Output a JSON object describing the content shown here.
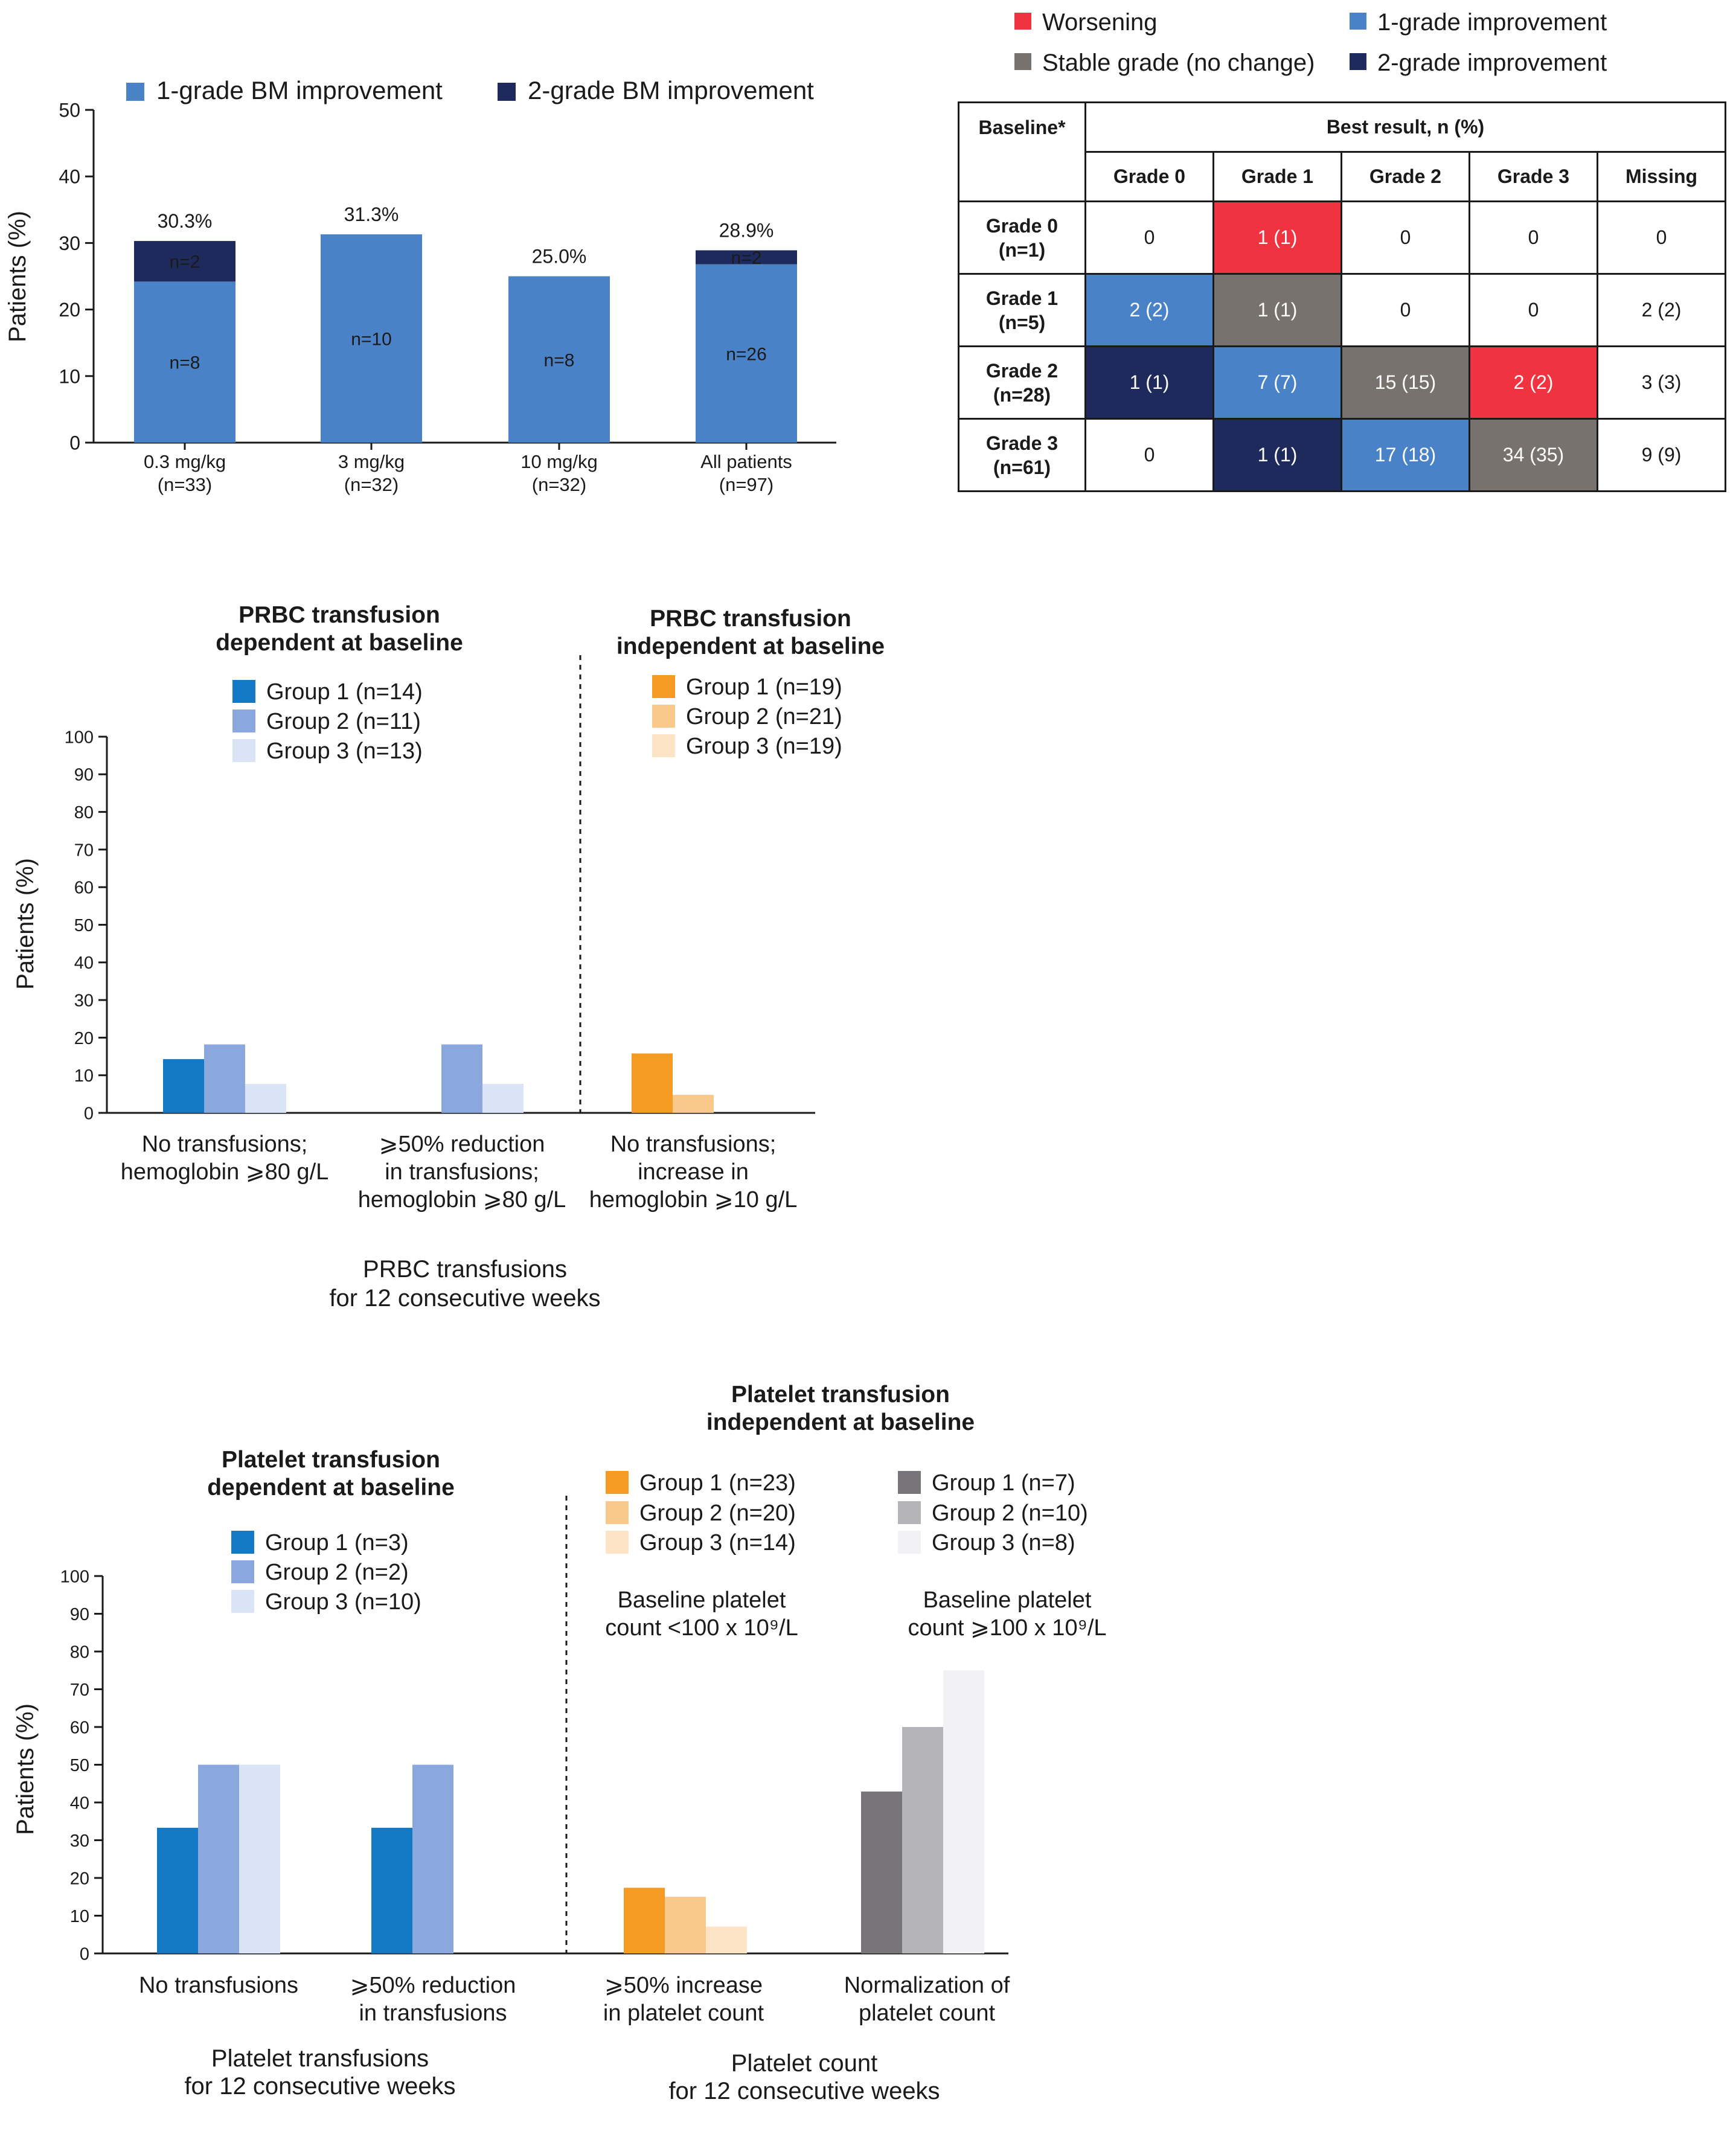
{
  "chart_data": [
    {
      "id": "bm-improvement",
      "type": "bar",
      "stacked": true,
      "ylabel": "Patients (%)",
      "ylim": [
        0,
        50
      ],
      "yticks": [
        0,
        10,
        20,
        30,
        40,
        50
      ],
      "categories": [
        "0.3 mg/kg\n(n=33)",
        "3 mg/kg\n(n=32)",
        "10 mg/kg\n(n=32)",
        "All patients\n(n=97)"
      ],
      "series": [
        {
          "name": "1-grade BM improvement",
          "color": "#4a82c8",
          "values": [
            24.2,
            31.3,
            25.0,
            26.8
          ],
          "labels": [
            "n=8",
            "n=10",
            "n=8",
            "n=26"
          ]
        },
        {
          "name": "2-grade BM improvement",
          "color": "#1f2a5c",
          "values": [
            6.1,
            0,
            0,
            2.1
          ],
          "labels": [
            "n=2",
            "",
            "",
            "n=2"
          ]
        }
      ],
      "totals": [
        "30.3%",
        "31.3%",
        "25.0%",
        "28.9%"
      ],
      "legend": "top"
    },
    {
      "id": "grade-shift-table",
      "type": "table",
      "legend": [
        {
          "name": "Worsening",
          "color": "#ef3340"
        },
        {
          "name": "1-grade improvement",
          "color": "#4a82c8"
        },
        {
          "name": "Stable grade (no change)",
          "color": "#77726e"
        },
        {
          "name": "2-grade improvement",
          "color": "#1f2a5c"
        }
      ],
      "corner_header": "Baseline*",
      "group_header": "Best result, n (%)",
      "columns": [
        "Grade 0",
        "Grade 1",
        "Grade 2",
        "Grade 3",
        "Missing"
      ],
      "rows": [
        {
          "label": "Grade 0\n(n=1)",
          "cells": [
            {
              "text": "0",
              "status": "none"
            },
            {
              "text": "1 (1)",
              "status": "worsening"
            },
            {
              "text": "0",
              "status": "none"
            },
            {
              "text": "0",
              "status": "none"
            },
            {
              "text": "0",
              "status": "none"
            }
          ]
        },
        {
          "label": "Grade 1\n(n=5)",
          "cells": [
            {
              "text": "2 (2)",
              "status": "1-grade"
            },
            {
              "text": "1 (1)",
              "status": "stable"
            },
            {
              "text": "0",
              "status": "none"
            },
            {
              "text": "0",
              "status": "none"
            },
            {
              "text": "2 (2)",
              "status": "none"
            }
          ]
        },
        {
          "label": "Grade 2\n(n=28)",
          "cells": [
            {
              "text": "1 (1)",
              "status": "2-grade"
            },
            {
              "text": "7 (7)",
              "status": "1-grade"
            },
            {
              "text": "15 (15)",
              "status": "stable"
            },
            {
              "text": "2 (2)",
              "status": "worsening"
            },
            {
              "text": "3 (3)",
              "status": "none"
            }
          ]
        },
        {
          "label": "Grade 3\n(n=61)",
          "cells": [
            {
              "text": "0",
              "status": "none"
            },
            {
              "text": "1 (1)",
              "status": "2-grade"
            },
            {
              "text": "17 (18)",
              "status": "1-grade"
            },
            {
              "text": "34 (35)",
              "status": "stable"
            },
            {
              "text": "9 (9)",
              "status": "none"
            }
          ]
        }
      ]
    },
    {
      "id": "prbc-transfusion",
      "type": "bar",
      "ylabel": "Patients (%)",
      "ylim": [
        0,
        100
      ],
      "yticks": [
        0,
        10,
        20,
        30,
        40,
        50,
        60,
        70,
        80,
        90,
        100
      ],
      "xlabel": "PRBC transfusions\nfor 12 consecutive weeks",
      "panels": [
        {
          "title": "PRBC transfusion\ndependent at baseline",
          "series": [
            {
              "name": "Group 1 (n=14)",
              "color": "#1479c4"
            },
            {
              "name": "Group 2 (n=11)",
              "color": "#8aa8de"
            },
            {
              "name": "Group 3 (n=13)",
              "color": "#d9e4f7"
            }
          ],
          "categories": [
            {
              "label": "No transfusions;\nhemoglobin ⩾80 g/L",
              "values": [
                14.3,
                18.2,
                7.7
              ]
            },
            {
              "label": "⩾50% reduction\nin transfusions;\nhemoglobin ⩾80 g/L",
              "values": [
                0,
                18.2,
                7.7
              ]
            }
          ]
        },
        {
          "title": "PRBC transfusion\nindependent at baseline",
          "series": [
            {
              "name": "Group 1 (n=19)",
              "color": "#f59a23"
            },
            {
              "name": "Group 2 (n=21)",
              "color": "#f9c88a"
            },
            {
              "name": "Group 3 (n=19)",
              "color": "#fde4c4"
            }
          ],
          "categories": [
            {
              "label": "No transfusions;\nincrease in\nhemoglobin ⩾10 g/L",
              "values": [
                15.8,
                4.8,
                0
              ]
            }
          ]
        }
      ]
    },
    {
      "id": "platelet-transfusion",
      "type": "bar",
      "ylabel": "Patients (%)",
      "ylim": [
        0,
        100
      ],
      "yticks": [
        0,
        10,
        20,
        30,
        40,
        50,
        60,
        70,
        80,
        90,
        100
      ],
      "panels": [
        {
          "title": "Platelet transfusion\ndependent at baseline",
          "xlabel": "Platelet transfusions\nfor 12 consecutive weeks",
          "series": [
            {
              "name": "Group 1 (n=3)",
              "color": "#1479c4"
            },
            {
              "name": "Group 2 (n=2)",
              "color": "#8aa8de"
            },
            {
              "name": "Group 3 (n=10)",
              "color": "#d9e4f7"
            }
          ],
          "categories": [
            {
              "label": "No transfusions",
              "values": [
                33.3,
                50,
                50
              ]
            },
            {
              "label": "⩾50% reduction\nin transfusions",
              "values": [
                33.3,
                50,
                0
              ]
            }
          ]
        },
        {
          "title": "Platelet transfusion\nindependent at baseline",
          "xlabel": "Platelet count\nfor 12 consecutive weeks",
          "subgroups": [
            {
              "label": "Baseline platelet\ncount <100 x 10⁹/L",
              "series": [
                {
                  "name": "Group 1 (n=23)",
                  "color": "#f59a23"
                },
                {
                  "name": "Group 2 (n=20)",
                  "color": "#f9c88a"
                },
                {
                  "name": "Group 3 (n=14)",
                  "color": "#fde4c4"
                }
              ],
              "category": {
                "label": "⩾50% increase\nin platelet count",
                "values": [
                  17.4,
                  15.0,
                  7.1
                ]
              }
            },
            {
              "label": "Baseline platelet\ncount ⩾100 x 10⁹/L",
              "series": [
                {
                  "name": "Group 1 (n=7)",
                  "color": "#77757a"
                },
                {
                  "name": "Group 2 (n=10)",
                  "color": "#b5b5b9"
                },
                {
                  "name": "Group 3 (n=8)",
                  "color": "#f2f2f6"
                }
              ],
              "category": {
                "label": "Normalization of\nplatelet count",
                "values": [
                  42.9,
                  60.0,
                  75.0
                ]
              }
            }
          ]
        }
      ]
    }
  ]
}
